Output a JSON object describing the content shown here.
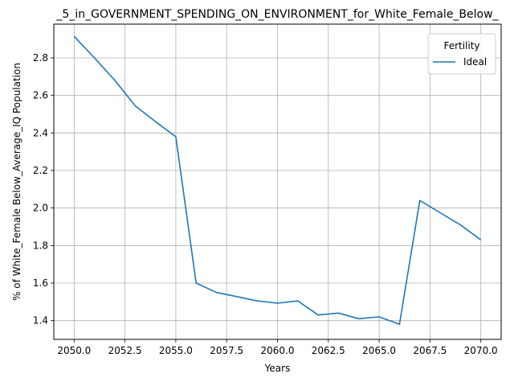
{
  "chart_data": {
    "type": "line",
    "title": "_5_in_GOVERNMENT_SPENDING_ON_ENVIRONMENT_for_White_Female_Below_",
    "xlabel": "Years",
    "ylabel": "% of White_Female Below_Average_IQ Population",
    "xlim": [
      2049,
      2071
    ],
    "ylim": [
      1.3,
      2.98
    ],
    "x_ticks": [
      2050,
      2052.5,
      2055,
      2057.5,
      2060,
      2062.5,
      2065,
      2067.5,
      2070
    ],
    "x_tick_labels": [
      "2050.0",
      "2052.5",
      "2055.0",
      "2057.5",
      "2060.0",
      "2062.5",
      "2065.0",
      "2067.5",
      "2070.0"
    ],
    "y_ticks": [
      1.4,
      1.6,
      1.8,
      2.0,
      2.2,
      2.4,
      2.6,
      2.8
    ],
    "y_tick_labels": [
      "1.4",
      "1.6",
      "1.8",
      "2.0",
      "2.2",
      "2.4",
      "2.6",
      "2.8"
    ],
    "grid": true,
    "legend": {
      "title": "Fertility",
      "position": "top-right"
    },
    "x": [
      2050,
      2051,
      2052,
      2053,
      2054,
      2055,
      2056,
      2057,
      2058,
      2059,
      2060,
      2061,
      2062,
      2063,
      2064,
      2065,
      2066,
      2067,
      2068,
      2069,
      2070
    ],
    "series": [
      {
        "name": "Ideal",
        "color": "#1f77b4",
        "values": [
          2.915,
          2.8,
          2.68,
          2.545,
          2.46,
          2.38,
          1.6,
          1.55,
          1.528,
          1.505,
          1.493,
          1.505,
          1.43,
          1.44,
          1.41,
          1.42,
          1.38,
          2.04,
          1.975,
          1.91,
          1.83
        ]
      }
    ]
  }
}
